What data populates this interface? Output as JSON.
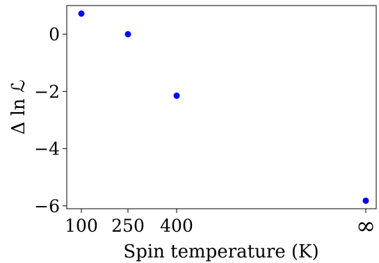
{
  "chart_data": {
    "type": "scatter",
    "title": "",
    "xlabel": "Spin temperature (K)",
    "ylabel": "Δ ln ℒ",
    "x_tick_labels": [
      "100",
      "250",
      "400",
      "∞"
    ],
    "y_ticks": [
      0,
      -2,
      -4,
      -6
    ],
    "y_tick_labels": [
      "0",
      "−2",
      "−4",
      "−6"
    ],
    "ylim": [
      -6.1,
      1.0
    ],
    "grid": false,
    "marker_color": "#0000ff",
    "points": [
      {
        "x": "100",
        "y": 0.72
      },
      {
        "x": "250",
        "y": 0.0
      },
      {
        "x": "400",
        "y": -2.15
      },
      {
        "x": "∞",
        "y": -5.82
      }
    ]
  }
}
